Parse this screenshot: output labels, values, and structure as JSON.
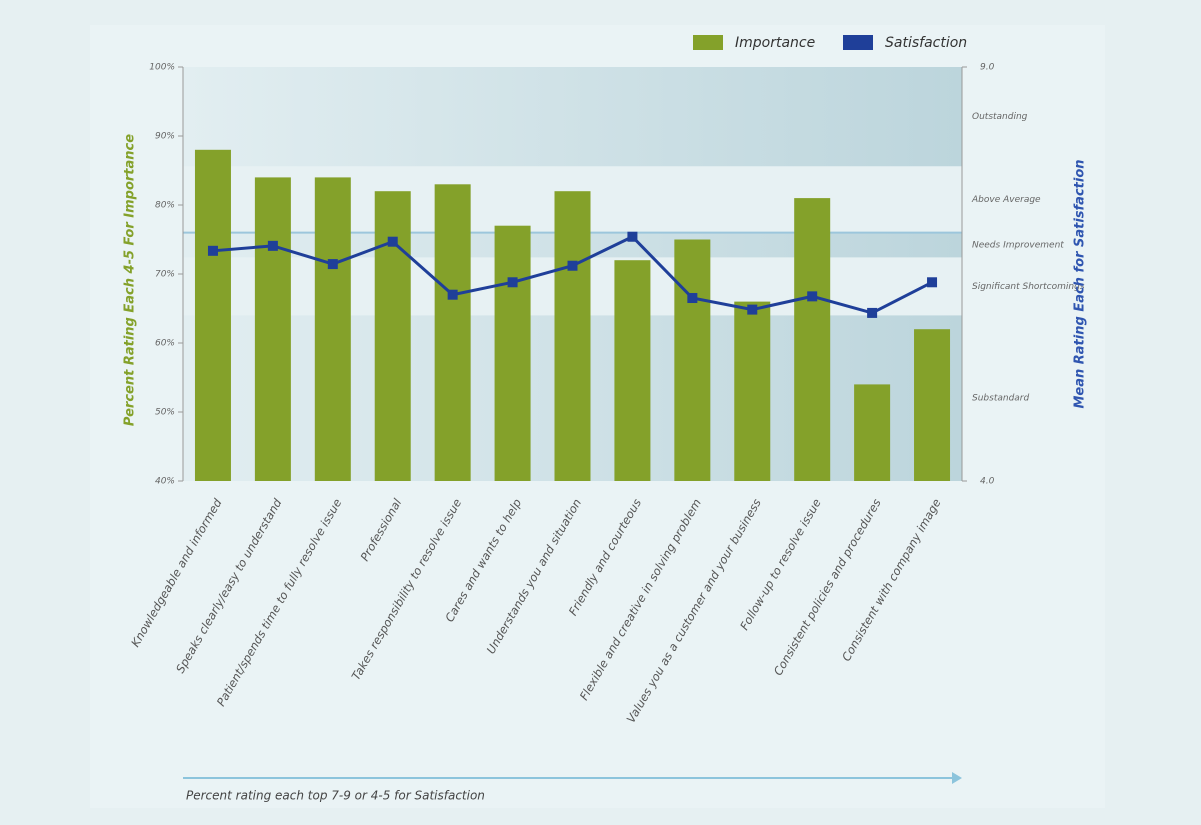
{
  "chart_data": {
    "type": "combo",
    "legend": "top-right",
    "categories": [
      "Knowledgeable and informed",
      "Speaks clearly/easy to understand",
      "Patient/spends time to fully resolve issue",
      "Professional",
      "Takes responsibility to resolve issue",
      "Cares and wants to help",
      "Understands you and situation",
      "Friendly and courteous",
      "Flexible and creative in solving problem",
      "Values you as a customer and your business",
      "Follow-up to resolve issue",
      "Consistent policies and procedures",
      "Consistent with company image"
    ],
    "series": [
      {
        "name": "Importance",
        "type": "bar",
        "color": "#84a12a",
        "axis": "y",
        "values": [
          88,
          84,
          84,
          82,
          83,
          77,
          82,
          72,
          75,
          66,
          81,
          54,
          62
        ]
      },
      {
        "name": "Satisfaction",
        "type": "line",
        "color": "#1f3f99",
        "axis": "y2",
        "values": [
          6.78,
          6.84,
          6.62,
          6.89,
          6.25,
          6.4,
          6.6,
          6.95,
          6.21,
          6.07,
          6.23,
          6.03,
          6.4
        ]
      }
    ],
    "ylabel": "Percent Rating Each 4-5 For Importance",
    "y2label": "Mean Rating Each for Satisfaction",
    "x_note": "Percent rating each top 7-9 or 4-5 for Satisfaction",
    "ylim": [
      40,
      100
    ],
    "yticks": [
      {
        "value": 40,
        "label": "40%"
      },
      {
        "value": 50,
        "label": "50%"
      },
      {
        "value": 60,
        "label": "60%"
      },
      {
        "value": 70,
        "label": "70%"
      },
      {
        "value": 80,
        "label": "80%"
      },
      {
        "value": 90,
        "label": "90%"
      },
      {
        "value": 100,
        "label": "100%"
      }
    ],
    "y2lim": [
      4,
      9
    ],
    "y2ticks": [
      {
        "value": 9,
        "label": "9.0"
      },
      {
        "value": 4,
        "label": "4.0"
      }
    ],
    "threshold": 7,
    "zones": [
      {
        "label": "Outstanding",
        "from": 7.8,
        "to": 9
      },
      {
        "label": "Above Average",
        "from": 7,
        "to": 7.8
      },
      {
        "label": "Needs Improvement",
        "from": 6.7,
        "to": 7
      },
      {
        "label": "Significant Shortcomings",
        "from": 6,
        "to": 6.7
      },
      {
        "label": "Substandard",
        "from": 4,
        "to": 6
      }
    ]
  }
}
